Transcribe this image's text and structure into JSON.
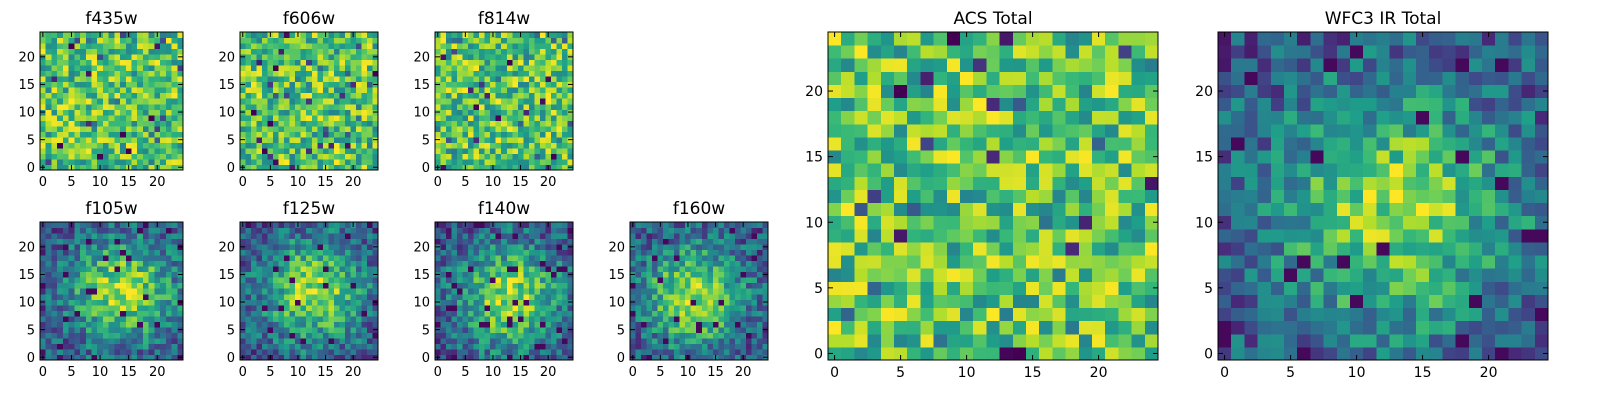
{
  "chart_data": [
    {
      "type": "heatmap",
      "title": "f435w",
      "grid_size": 25,
      "xlim": [
        -0.5,
        24.5
      ],
      "ylim": [
        -0.5,
        24.5
      ],
      "xticks": [
        0,
        5,
        10,
        15,
        20
      ],
      "yticks": [
        0,
        5,
        10,
        15,
        20
      ],
      "colormap": "viridis",
      "pattern": "noise",
      "grid": false,
      "seed": 11
    },
    {
      "type": "heatmap",
      "title": "f606w",
      "grid_size": 25,
      "xlim": [
        -0.5,
        24.5
      ],
      "ylim": [
        -0.5,
        24.5
      ],
      "xticks": [
        0,
        5,
        10,
        15,
        20
      ],
      "yticks": [
        0,
        5,
        10,
        15,
        20
      ],
      "colormap": "viridis",
      "pattern": "noise",
      "grid": false,
      "seed": 23
    },
    {
      "type": "heatmap",
      "title": "f814w",
      "grid_size": 25,
      "xlim": [
        -0.5,
        24.5
      ],
      "ylim": [
        -0.5,
        24.5
      ],
      "xticks": [
        0,
        5,
        10,
        15,
        20
      ],
      "yticks": [
        0,
        5,
        10,
        15,
        20
      ],
      "colormap": "viridis",
      "pattern": "noise",
      "grid": false,
      "seed": 37
    },
    {
      "type": "heatmap",
      "title": "f105w",
      "grid_size": 25,
      "xlim": [
        -0.5,
        24.5
      ],
      "ylim": [
        -0.5,
        24.5
      ],
      "xticks": [
        0,
        5,
        10,
        15,
        20
      ],
      "yticks": [
        0,
        5,
        10,
        15,
        20
      ],
      "colormap": "viridis",
      "pattern": "blob",
      "peak": [
        14,
        12
      ],
      "grid": false,
      "seed": 41
    },
    {
      "type": "heatmap",
      "title": "f125w",
      "grid_size": 25,
      "xlim": [
        -0.5,
        24.5
      ],
      "ylim": [
        -0.5,
        24.5
      ],
      "xticks": [
        0,
        5,
        10,
        15,
        20
      ],
      "yticks": [
        0,
        5,
        10,
        15,
        20
      ],
      "colormap": "viridis",
      "pattern": "blob",
      "peak": [
        13,
        12
      ],
      "grid": false,
      "seed": 53
    },
    {
      "type": "heatmap",
      "title": "f140w",
      "grid_size": 25,
      "xlim": [
        -0.5,
        24.5
      ],
      "ylim": [
        -0.5,
        24.5
      ],
      "xticks": [
        0,
        5,
        10,
        15,
        20
      ],
      "yticks": [
        0,
        5,
        10,
        15,
        20
      ],
      "colormap": "viridis",
      "pattern": "blob",
      "peak": [
        13,
        11
      ],
      "grid": false,
      "seed": 67
    },
    {
      "type": "heatmap",
      "title": "f160w",
      "grid_size": 25,
      "xlim": [
        -0.5,
        24.5
      ],
      "ylim": [
        -0.5,
        24.5
      ],
      "xticks": [
        0,
        5,
        10,
        15,
        20
      ],
      "yticks": [
        0,
        5,
        10,
        15,
        20
      ],
      "colormap": "viridis",
      "pattern": "blob",
      "peak": [
        11,
        11
      ],
      "grid": false,
      "seed": 79
    },
    {
      "type": "heatmap",
      "title": "ACS Total",
      "grid_size": 25,
      "xlim": [
        -0.5,
        24.5
      ],
      "ylim": [
        -0.5,
        24.5
      ],
      "xticks": [
        0,
        5,
        10,
        15,
        20
      ],
      "yticks": [
        0,
        5,
        10,
        15,
        20
      ],
      "colormap": "viridis",
      "pattern": "noise",
      "grid": false,
      "seed": 97
    },
    {
      "type": "heatmap",
      "title": "WFC3 IR Total",
      "grid_size": 25,
      "xlim": [
        -0.5,
        24.5
      ],
      "ylim": [
        -0.5,
        24.5
      ],
      "xticks": [
        0,
        5,
        10,
        15,
        20
      ],
      "yticks": [
        0,
        5,
        10,
        15,
        20
      ],
      "colormap": "viridis",
      "pattern": "blob",
      "peak": [
        13,
        11
      ],
      "grid": false,
      "seed": 101
    }
  ]
}
